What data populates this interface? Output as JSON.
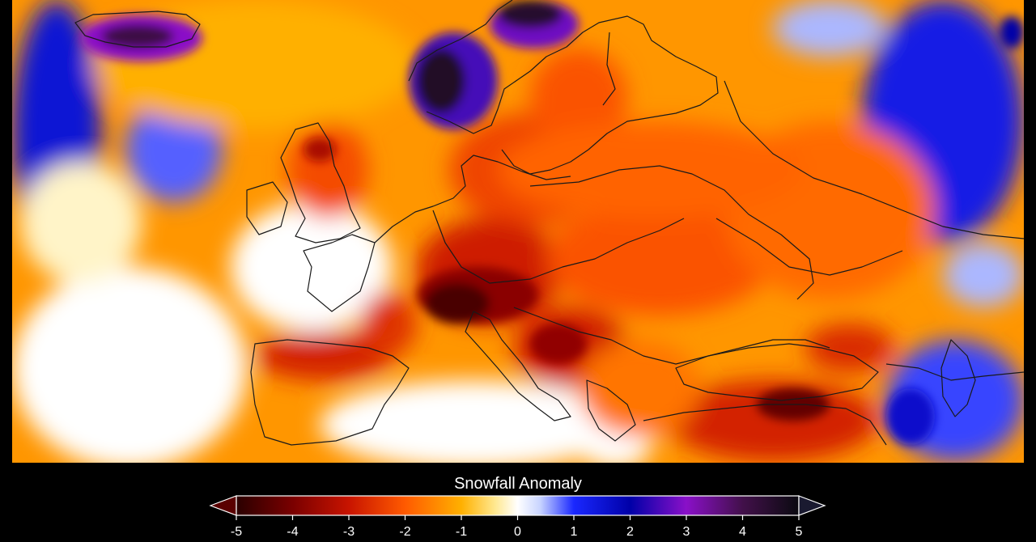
{
  "legend": {
    "title": "Snowfall Anomaly",
    "ticks": [
      "-5",
      "-4",
      "-3",
      "-2",
      "-1",
      "0",
      "1",
      "2",
      "3",
      "4",
      "5"
    ],
    "range": [
      -5,
      5
    ],
    "stops": [
      {
        "value": -5,
        "color": "#2a0000"
      },
      {
        "value": -4,
        "color": "#7a0000"
      },
      {
        "value": -3,
        "color": "#c81400"
      },
      {
        "value": -2,
        "color": "#ff5a00"
      },
      {
        "value": -1,
        "color": "#ffb000"
      },
      {
        "value": -0.4,
        "color": "#ffe890"
      },
      {
        "value": 0,
        "color": "#ffffff"
      },
      {
        "value": 0.4,
        "color": "#c8d4ff"
      },
      {
        "value": 1,
        "color": "#1a28ff"
      },
      {
        "value": 2,
        "color": "#0000a8"
      },
      {
        "value": 3,
        "color": "#8a10c8"
      },
      {
        "value": 4,
        "color": "#42104a"
      },
      {
        "value": 5,
        "color": "#0a0a10"
      }
    ],
    "under_color": "#5a0000",
    "over_color": "#1a1a30"
  },
  "map": {
    "background_anomaly": -1.3,
    "ocean_color": "#ffffff",
    "border_color": "#1a1a1a"
  }
}
